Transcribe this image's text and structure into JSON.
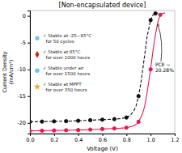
{
  "chart_data": {
    "type": "line",
    "title": "[Non-encapsulated device]",
    "x_label": "Voltage (V)",
    "y_label": "Current Density\n(mA/cm²)",
    "xlim": [
      0.0,
      1.2
    ],
    "ylim": [
      -22,
      1
    ],
    "xticks": [
      {
        "value": 0,
        "label": "0.0"
      },
      0.2,
      0.4,
      0.6,
      0.8,
      {
        "value": 1,
        "label": "1.0"
      },
      1.2
    ],
    "yticks": [
      0,
      -5,
      -10,
      -15,
      -20
    ],
    "grid": false,
    "series": [
      {
        "type": "line",
        "color": "#e8174b",
        "line_style": "solid",
        "x": [
          0.0,
          0.05,
          0.1,
          0.15,
          0.2,
          0.25,
          0.3,
          0.35,
          0.4,
          0.45,
          0.5,
          0.55,
          0.6,
          0.65,
          0.7,
          0.75,
          0.8,
          0.85,
          0.88,
          0.9,
          0.93,
          0.95,
          0.97,
          1.0,
          1.02,
          1.04,
          1.06,
          1.08,
          1.1,
          1.12
        ],
        "values": [
          -21.5,
          -21.48,
          -21.46,
          -21.44,
          -21.42,
          -21.4,
          -21.38,
          -21.36,
          -21.34,
          -21.3,
          -21.25,
          -21.2,
          -21.15,
          -21.1,
          -21.05,
          -21.0,
          -20.9,
          -20.65,
          -20.3,
          -19.8,
          -18.5,
          -17.0,
          -14.5,
          -10.0,
          -6.5,
          -3.5,
          -1.2,
          0.2,
          0.45,
          0.55
        ]
      },
      {
        "type": "scatter",
        "color": "#e8174b",
        "marker": "circle",
        "x": [
          0.0,
          0.1,
          0.2,
          0.3,
          0.4,
          0.5,
          0.6,
          0.7,
          0.8,
          0.9,
          1.0,
          1.08
        ],
        "values": [
          -21.5,
          -21.46,
          -21.42,
          -21.38,
          -21.34,
          -21.25,
          -21.15,
          -21.05,
          -20.9,
          -19.8,
          -10.0,
          0.2
        ]
      },
      {
        "type": "line",
        "color": "#111111",
        "line_style": "dashed",
        "x": [
          0.0,
          0.05,
          0.1,
          0.15,
          0.2,
          0.25,
          0.3,
          0.35,
          0.4,
          0.45,
          0.5,
          0.55,
          0.6,
          0.65,
          0.7,
          0.75,
          0.8,
          0.83,
          0.86,
          0.88,
          0.9,
          0.92,
          0.95,
          0.97,
          1.0,
          1.02,
          1.04,
          1.06
        ],
        "values": [
          -19.8,
          -19.78,
          -19.76,
          -19.74,
          -19.72,
          -19.7,
          -19.68,
          -19.65,
          -19.6,
          -19.55,
          -19.5,
          -19.45,
          -19.4,
          -19.35,
          -19.3,
          -19.2,
          -19.0,
          -18.6,
          -17.8,
          -16.8,
          -15.0,
          -12.5,
          -7.5,
          -4.0,
          -0.8,
          0.2,
          0.45,
          0.55
        ]
      },
      {
        "type": "scatter",
        "color": "#111111",
        "marker": "circle",
        "x": [
          0.0,
          0.1,
          0.2,
          0.3,
          0.4,
          0.5,
          0.6,
          0.7,
          0.8,
          0.9,
          1.0,
          1.04
        ],
        "values": [
          -19.8,
          -19.76,
          -19.72,
          -19.68,
          -19.6,
          -19.5,
          -19.4,
          -19.3,
          -19.0,
          -15.0,
          -0.8,
          0.45
        ]
      }
    ],
    "annotations": [
      {
        "text": "PCE ~\n20.28%"
      },
      {
        "text": "✓ Stable at MPPT\n  for over 350 hours",
        "color": "#f5a623",
        "marker": "star"
      },
      {
        "text": "✓ Stable under air\n  for over 1500 hours",
        "color": "#5bc8f5",
        "marker": "circle"
      },
      {
        "text": "✓ Stable at 85°C\n  for over 1000 hours",
        "color": "#cc2200",
        "marker": "diamond"
      },
      {
        "text": "✓ Stable at -25~85°C\n  for 50 cycles",
        "color": "#5bc8f5",
        "marker": "square"
      }
    ]
  }
}
